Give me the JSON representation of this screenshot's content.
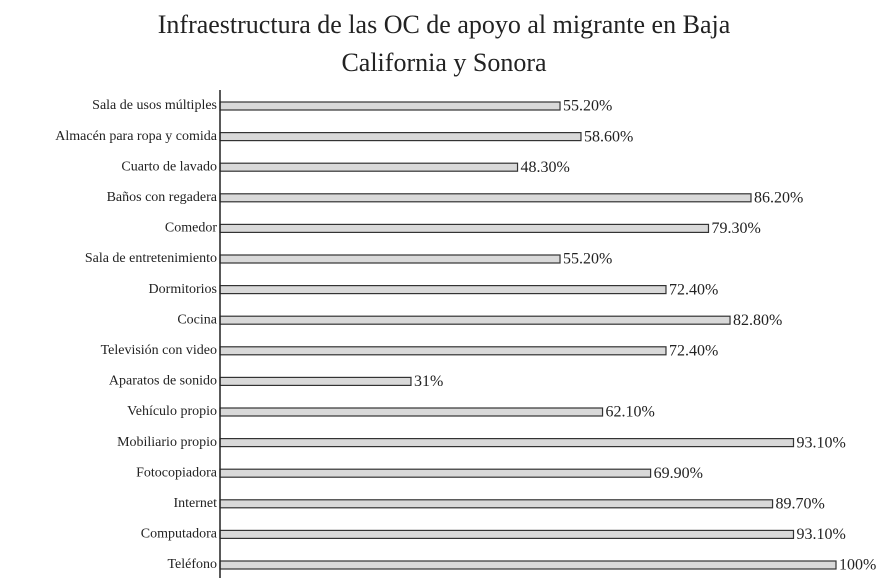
{
  "chart_data": {
    "type": "bar",
    "orientation": "horizontal",
    "title": "Infraestructura de las OC de apoyo al migrante en Baja California y Sonora",
    "categories": [
      "Sala de usos múltiples",
      "Almacén para ropa y comida",
      "Cuarto de lavado",
      "Baños con regadera",
      "Comedor",
      "Sala de entretenimiento",
      "Dormitorios",
      "Cocina",
      "Televisión con video",
      "Aparatos de sonido",
      "Vehículo propio",
      "Mobiliario propio",
      "Fotocopiadora",
      "Internet",
      "Computadora",
      "Teléfono"
    ],
    "values": [
      55.2,
      58.6,
      48.3,
      86.2,
      79.3,
      55.2,
      72.4,
      82.8,
      72.4,
      31,
      62.1,
      93.1,
      69.9,
      89.7,
      93.1,
      100
    ],
    "value_labels": [
      "55.20%",
      "58.60%",
      "48.30%",
      "86.20%",
      "79.30%",
      "55.20%",
      "72.40%",
      "82.80%",
      "72.40%",
      "31%",
      "62.10%",
      "93.10%",
      "69.90%",
      "89.70%",
      "93.10%",
      "100%"
    ],
    "color": "#d9d9d9",
    "xlim": [
      0,
      100
    ]
  }
}
